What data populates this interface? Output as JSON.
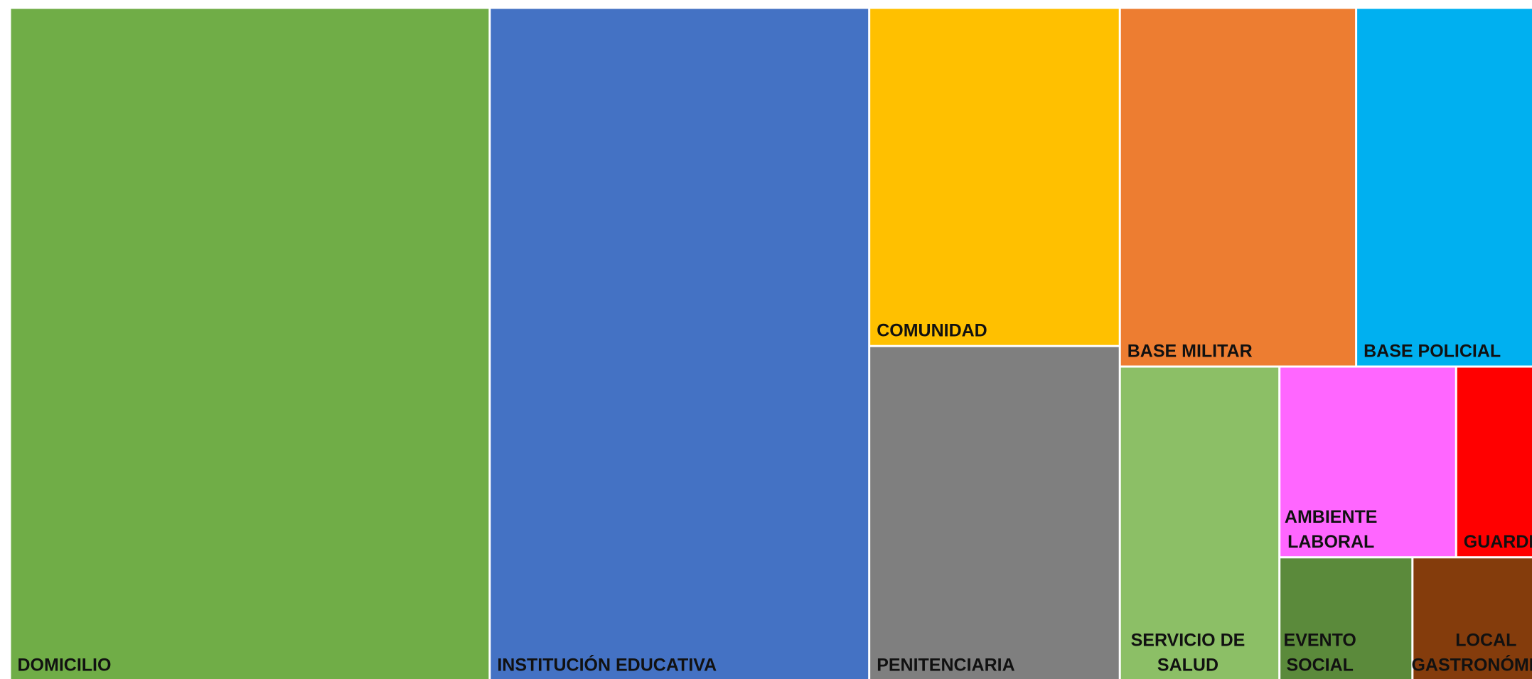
{
  "chart_data": {
    "type": "treemap",
    "categories": [
      "DOMICILIO",
      "INSTITUCIÓN EDUCATIVA",
      "COMUNIDAD",
      "PENITENCIARIA",
      "BASE MILITAR",
      "BASE POLICIAL",
      "SERVICIO DE SALUD",
      "AMBIENTE LABORAL",
      "GUARDERIA",
      "EVENTO SOCIAL",
      "LOCAL GASTRONÓMICO"
    ],
    "values": [
      335,
      265,
      88,
      87,
      88,
      88,
      52,
      35,
      27,
      17,
      23
    ],
    "colors": [
      "#70ad47",
      "#4472c4",
      "#ffc000",
      "#7f7f7f",
      "#ed7d31",
      "#00b0f0",
      "#8cbf66",
      "#ff66ff",
      "#ff0000",
      "#5b8a3b",
      "#843c0c"
    ]
  }
}
